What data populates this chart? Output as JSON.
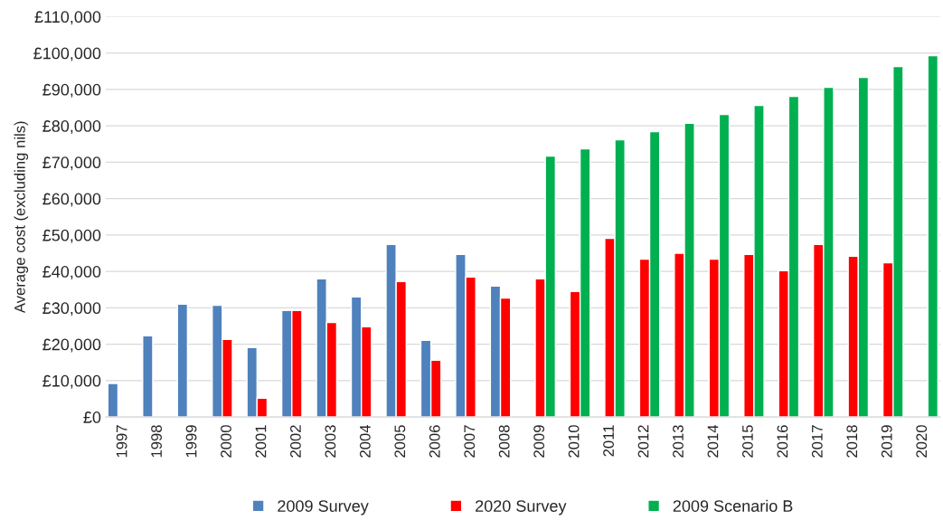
{
  "chart_data": {
    "type": "bar",
    "ylabel": "Average cost (excluding nils)",
    "categories": [
      "1997",
      "1998",
      "1999",
      "2000",
      "2001",
      "2002",
      "2003",
      "2004",
      "2005",
      "2006",
      "2007",
      "2008",
      "2009",
      "2010",
      "2011",
      "2012",
      "2013",
      "2014",
      "2015",
      "2016",
      "2017",
      "2018",
      "2019",
      "2020"
    ],
    "series": [
      {
        "name": "2009 Survey",
        "color": "#4f81bd",
        "values": [
          9200,
          22300,
          31000,
          30700,
          19100,
          29300,
          38000,
          33000,
          47400,
          21100,
          44700,
          36000,
          null,
          null,
          null,
          null,
          null,
          null,
          null,
          null,
          null,
          null,
          null,
          null
        ]
      },
      {
        "name": "2020 Survey",
        "color": "#ff0000",
        "values": [
          null,
          null,
          null,
          21300,
          5200,
          29300,
          26000,
          24800,
          37200,
          15600,
          38500,
          32700,
          38000,
          34500,
          49100,
          43400,
          45000,
          43400,
          44700,
          40200,
          47400,
          44200,
          42400,
          null
        ]
      },
      {
        "name": "2009 Scenario B",
        "color": "#00b050",
        "values": [
          null,
          null,
          null,
          null,
          null,
          null,
          null,
          null,
          null,
          null,
          null,
          null,
          71700,
          73700,
          76200,
          78400,
          80700,
          83100,
          85600,
          88100,
          90600,
          93300,
          96300,
          99300
        ]
      }
    ],
    "ylim": [
      0,
      110000
    ],
    "yticks": [
      {
        "value": 0,
        "label": "£0"
      },
      {
        "value": 10000,
        "label": "£10,000"
      },
      {
        "value": 20000,
        "label": "£20,000"
      },
      {
        "value": 30000,
        "label": "£30,000"
      },
      {
        "value": 40000,
        "label": "£40,000"
      },
      {
        "value": 50000,
        "label": "£50,000"
      },
      {
        "value": 60000,
        "label": "£60,000"
      },
      {
        "value": 70000,
        "label": "£70,000"
      },
      {
        "value": 80000,
        "label": "£80,000"
      },
      {
        "value": 90000,
        "label": "£90,000"
      },
      {
        "value": 100000,
        "label": "£100,000"
      },
      {
        "value": 110000,
        "label": "£110,000"
      }
    ],
    "grid": "y",
    "legend": "bottom"
  }
}
